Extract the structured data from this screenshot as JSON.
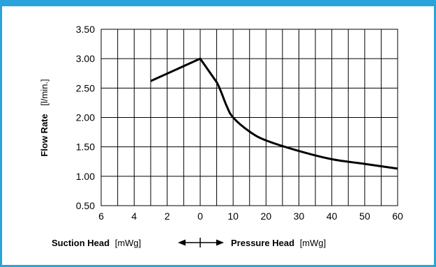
{
  "colors": {
    "frame": "#2aa3da",
    "line": "#000000",
    "grid": "#000000"
  },
  "chart_data": {
    "type": "line",
    "ylabel_bold": "Flow Rate",
    "ylabel_unit": "[l/min.]",
    "xlabel_left_bold": "Suction Head",
    "xlabel_left_unit": "[mWg]",
    "xlabel_right_bold": "Pressure Head",
    "xlabel_right_unit": "[mWg]",
    "direction_marker": "◄—|—►",
    "ylim": [
      0.5,
      3.5
    ],
    "y_ticks": [
      "0.50",
      "1.00",
      "1.50",
      "2.00",
      "2.50",
      "3.00",
      "3.50"
    ],
    "y_tick_values": [
      0.5,
      1.0,
      1.5,
      2.0,
      2.5,
      3.0,
      3.5
    ],
    "x_segments": [
      {
        "side": "suction",
        "from": 6,
        "to": 0,
        "ticks": [
          "6",
          "4",
          "2",
          "0"
        ],
        "tick_values": [
          6,
          4,
          2,
          0
        ],
        "minor_step": 1
      },
      {
        "side": "pressure",
        "from": 0,
        "to": 60,
        "ticks": [
          "10",
          "20",
          "30",
          "40",
          "50",
          "60"
        ],
        "tick_values": [
          10,
          20,
          30,
          40,
          50,
          60
        ],
        "minor_step": 5
      }
    ],
    "grid": true,
    "series": [
      {
        "points": [
          {
            "side": "suction",
            "head": 3,
            "flow": 2.62
          },
          {
            "side": "suction",
            "head": 0,
            "flow": 3.0
          },
          {
            "side": "pressure",
            "head": 5,
            "flow": 2.6
          },
          {
            "side": "pressure",
            "head": 8,
            "flow": 2.2
          },
          {
            "side": "pressure",
            "head": 10,
            "flow": 2.0
          },
          {
            "side": "pressure",
            "head": 15,
            "flow": 1.76
          },
          {
            "side": "pressure",
            "head": 20,
            "flow": 1.61
          },
          {
            "side": "pressure",
            "head": 30,
            "flow": 1.43
          },
          {
            "side": "pressure",
            "head": 40,
            "flow": 1.29
          },
          {
            "side": "pressure",
            "head": 50,
            "flow": 1.21
          },
          {
            "side": "pressure",
            "head": 60,
            "flow": 1.13
          }
        ]
      }
    ]
  }
}
